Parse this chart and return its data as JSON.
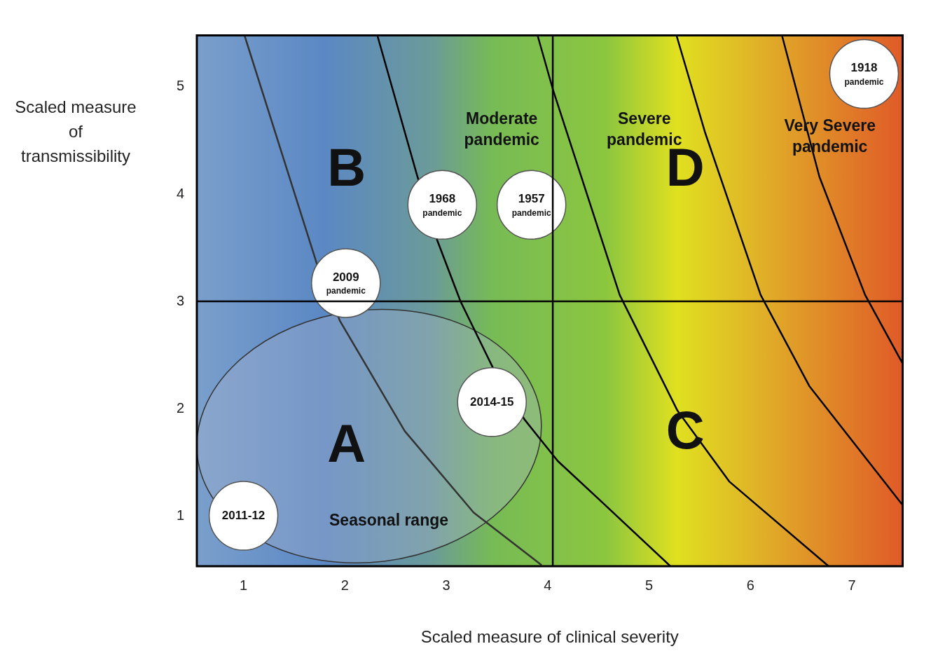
{
  "chart_data": {
    "type": "scatter",
    "xlabel": "Scaled measure of clinical severity",
    "ylabel": "Scaled measure of transmissibility",
    "xlim": [
      0.54,
      7.5
    ],
    "ylim": [
      0.53,
      5.48
    ],
    "xticks": [
      1,
      2,
      3,
      4,
      5,
      6,
      7
    ],
    "yticks": [
      1,
      2,
      3,
      4,
      5
    ],
    "grid": false,
    "legend": false,
    "ref_lines": [
      {
        "axis": "x",
        "value": 4.05,
        "color": "#000000"
      },
      {
        "axis": "y",
        "value": 3,
        "color": "#000000"
      }
    ],
    "series": [
      {
        "type": "line",
        "color": "#333333",
        "marker": "none",
        "x": [
          1.01,
          1.72,
          1.95,
          2.59,
          3.27,
          3.94
        ],
        "values": [
          5.48,
          3.36,
          2.82,
          1.79,
          1.03,
          0.54
        ]
      },
      {
        "type": "line",
        "color": "#000000",
        "marker": "none",
        "x": [
          2.32,
          2.71,
          2.91,
          3.14,
          3.46,
          3.77,
          4.1,
          4.51,
          5.21
        ],
        "values": [
          5.48,
          4.18,
          3.57,
          3.0,
          2.38,
          1.9,
          1.51,
          1.15,
          0.53
        ]
      },
      {
        "type": "line",
        "color": "#000000",
        "marker": "none",
        "x": [
          3.9,
          4.05,
          4.71,
          5.28,
          5.79,
          6.77
        ],
        "values": [
          5.48,
          4.98,
          3.06,
          1.98,
          1.32,
          0.53
        ]
      },
      {
        "type": "line",
        "color": "#000000",
        "marker": "none",
        "x": [
          5.27,
          5.55,
          6.1,
          6.58,
          7.5
        ],
        "values": [
          5.48,
          4.58,
          3.06,
          2.21,
          1.1
        ]
      },
      {
        "type": "line",
        "color": "#000000",
        "marker": "none",
        "x": [
          6.31,
          6.68,
          7.13,
          7.5
        ],
        "values": [
          5.48,
          4.16,
          3.06,
          2.42
        ]
      },
      {
        "color": "#ffffff",
        "marker": "circle",
        "x": [
          1,
          2.01,
          2.96,
          3.84,
          3.45,
          7.12
        ],
        "values": [
          1,
          3.17,
          3.9,
          3.9,
          2.06,
          5.12
        ]
      }
    ],
    "annotations": [
      {
        "text": "2011-12",
        "x": 1,
        "y": 1
      },
      {
        "text": "2009\npandemic",
        "x": 2.01,
        "y": 3.17
      },
      {
        "text": "1968\npandemic",
        "x": 2.96,
        "y": 3.9
      },
      {
        "text": "1957\npandemic",
        "x": 3.84,
        "y": 3.9
      },
      {
        "text": "2014-15",
        "x": 3.45,
        "y": 2.06
      },
      {
        "text": "1918\npandemic",
        "x": 7.12,
        "y": 5.12
      },
      "Moderate\npandemic",
      "Severe\npandemic",
      "Very Severe\npandemic",
      "B",
      "D",
      "A",
      "C",
      "Seasonal range"
    ]
  }
}
